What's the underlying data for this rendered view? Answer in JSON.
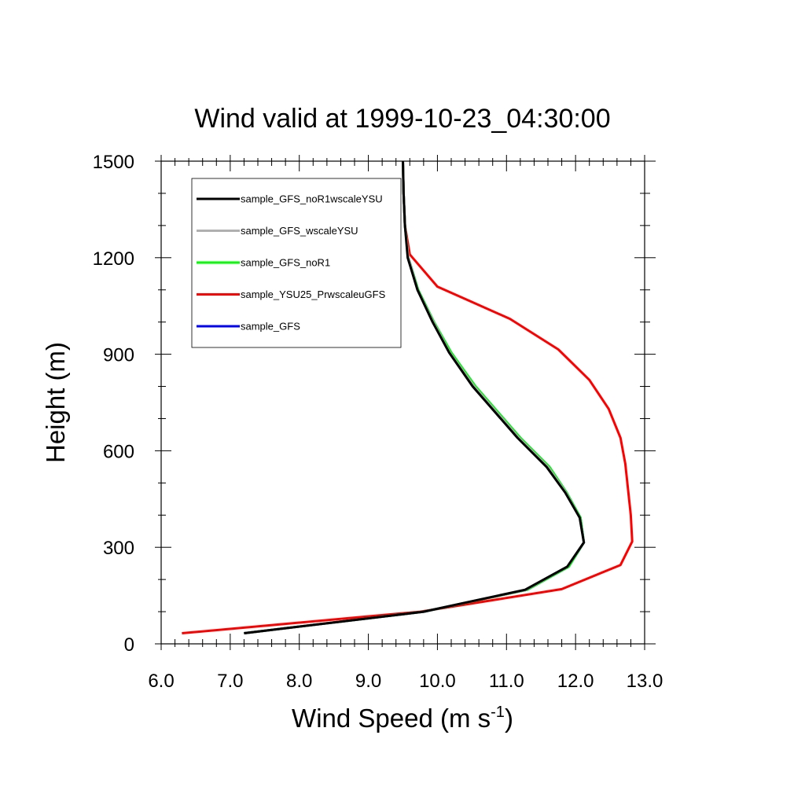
{
  "chart_data": {
    "type": "line",
    "title": "Wind valid at 1999-10-23_04:30:00",
    "xlabel": "Wind Speed (m s",
    "xlabel_sup": "-1",
    "xlabel_end": ")",
    "ylabel": "Height (m)",
    "xlim": [
      6.0,
      13.0
    ],
    "ylim": [
      0,
      1500
    ],
    "xticks": [
      6.0,
      7.0,
      8.0,
      9.0,
      10.0,
      11.0,
      12.0,
      13.0
    ],
    "xtick_labels": [
      "6.0",
      "7.0",
      "8.0",
      "9.0",
      "10.0",
      "11.0",
      "12.0",
      "13.0"
    ],
    "yticks": [
      0,
      300,
      600,
      900,
      1200,
      1500
    ],
    "ytick_labels": [
      "0",
      "300",
      "600",
      "900",
      "1200",
      "1500"
    ],
    "grid": false,
    "legend_position": "top-left",
    "series": [
      {
        "name": "sample_GFS",
        "color": "#0000ff",
        "points": [
          [
            7.2,
            33
          ],
          [
            9.8,
            100
          ],
          [
            11.3,
            168
          ],
          [
            11.9,
            240
          ],
          [
            12.12,
            315
          ],
          [
            12.07,
            392
          ],
          [
            11.87,
            470
          ],
          [
            11.62,
            550
          ],
          [
            11.2,
            640
          ],
          [
            10.55,
            800
          ],
          [
            10.2,
            905
          ],
          [
            9.95,
            1000
          ],
          [
            9.72,
            1100
          ],
          [
            9.58,
            1200
          ],
          [
            9.53,
            1300
          ],
          [
            9.51,
            1400
          ],
          [
            9.5,
            1500
          ]
        ]
      },
      {
        "name": "sample_YSU25_PrwscaleuGFS",
        "color": "#ff0000",
        "points": [
          [
            6.3,
            33
          ],
          [
            9.75,
            100
          ],
          [
            11.8,
            170
          ],
          [
            12.65,
            245
          ],
          [
            12.82,
            318
          ],
          [
            12.8,
            400
          ],
          [
            12.72,
            560
          ],
          [
            12.65,
            640
          ],
          [
            12.48,
            730
          ],
          [
            12.2,
            820
          ],
          [
            11.75,
            915
          ],
          [
            11.05,
            1010
          ],
          [
            10.0,
            1110
          ],
          [
            9.6,
            1210
          ],
          [
            9.53,
            1300
          ],
          [
            9.51,
            1400
          ],
          [
            9.5,
            1500
          ]
        ]
      },
      {
        "name": "sample_GFS_noR1",
        "color": "#00ff00",
        "points": [
          [
            7.2,
            33
          ],
          [
            9.8,
            100
          ],
          [
            11.3,
            168
          ],
          [
            11.9,
            240
          ],
          [
            12.12,
            315
          ],
          [
            12.07,
            392
          ],
          [
            11.87,
            470
          ],
          [
            11.62,
            550
          ],
          [
            11.2,
            640
          ],
          [
            10.55,
            800
          ],
          [
            10.2,
            905
          ],
          [
            9.95,
            1000
          ],
          [
            9.72,
            1100
          ],
          [
            9.58,
            1200
          ],
          [
            9.53,
            1300
          ],
          [
            9.51,
            1400
          ],
          [
            9.5,
            1500
          ]
        ]
      },
      {
        "name": "sample_GFS_wscaleYSU",
        "color": "#b0b0b0",
        "points": [
          [
            7.2,
            33
          ],
          [
            9.8,
            100
          ],
          [
            11.28,
            168
          ],
          [
            11.88,
            240
          ],
          [
            12.12,
            315
          ],
          [
            12.06,
            392
          ],
          [
            11.86,
            470
          ],
          [
            11.6,
            550
          ],
          [
            11.18,
            640
          ],
          [
            10.53,
            800
          ],
          [
            10.18,
            905
          ],
          [
            9.94,
            1000
          ],
          [
            9.71,
            1100
          ],
          [
            9.58,
            1200
          ],
          [
            9.53,
            1300
          ],
          [
            9.51,
            1400
          ],
          [
            9.5,
            1500
          ]
        ]
      },
      {
        "name": "sample_GFS_noR1wscaleYSU",
        "color": "#000000",
        "points": [
          [
            7.2,
            33
          ],
          [
            9.8,
            100
          ],
          [
            11.27,
            168
          ],
          [
            11.88,
            240
          ],
          [
            12.12,
            315
          ],
          [
            12.06,
            392
          ],
          [
            11.85,
            470
          ],
          [
            11.58,
            550
          ],
          [
            11.16,
            640
          ],
          [
            10.51,
            800
          ],
          [
            10.17,
            905
          ],
          [
            9.93,
            1000
          ],
          [
            9.71,
            1100
          ],
          [
            9.57,
            1200
          ],
          [
            9.53,
            1300
          ],
          [
            9.51,
            1400
          ],
          [
            9.5,
            1500
          ]
        ]
      }
    ],
    "legend": [
      {
        "name": "sample_GFS_noR1wscaleYSU",
        "color": "#000000"
      },
      {
        "name": "sample_GFS_wscaleYSU",
        "color": "#b0b0b0"
      },
      {
        "name": "sample_GFS_noR1",
        "color": "#00ff00"
      },
      {
        "name": "sample_YSU25_PrwscaleuGFS",
        "color": "#ff0000"
      },
      {
        "name": "sample_GFS",
        "color": "#0000ff"
      }
    ]
  }
}
